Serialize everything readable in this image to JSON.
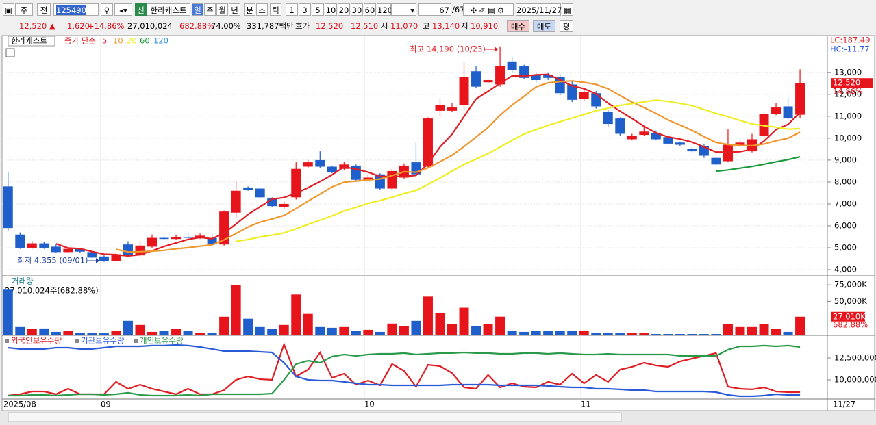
{
  "toolbar": {
    "period": "주",
    "mode": "전",
    "code": "125490",
    "badge": "신",
    "name": "한라캐스트",
    "units": [
      "일",
      "주",
      "월",
      "년",
      "분",
      "초",
      "틱"
    ],
    "intervals": [
      "1",
      "3",
      "5",
      "10",
      "20",
      "30",
      "60",
      "120"
    ],
    "count": "67",
    "total": "/67",
    "date": "2025/11/27"
  },
  "quote": {
    "price": "12,520 ▲",
    "change": "1,620",
    "rate": "+14.86%",
    "volume": "27,010,024",
    "volume_rate": "682.88%",
    "turnover": "74.00%",
    "amount": "331,787백만",
    "bid_label": "호가",
    "ask": "12,520",
    "bid": "12,510",
    "open_label": "시",
    "open": "11,070",
    "high_label": "고",
    "high": "13,140",
    "low_label": "저",
    "low": "10,910",
    "buy": "매수",
    "sell": "매도",
    "avg": "평"
  },
  "x_axis_labels": [
    "2025/08",
    "09",
    "10",
    "11"
  ],
  "last_date": "11/27",
  "chart_data": [
    {
      "type": "candlestick",
      "title": "한라캐스트",
      "ma_label": "종가 단순",
      "lc": "LC:187.49",
      "hc": "HC:-11.77",
      "high_note": "최고 14,190 (10/23)",
      "low_note": "최저 4,355 (09/01)",
      "up_color": "#e8141c",
      "down_color": "#1f5fcc",
      "grid": true,
      "open": [
        7800,
        5600,
        5000,
        5200,
        5050,
        4800,
        4950,
        4800,
        4600,
        4400,
        5150,
        4650,
        5050,
        5450,
        5400,
        5500,
        5450,
        5450,
        5150,
        6600,
        7750,
        7700,
        7250,
        6850,
        7300,
        8700,
        9000,
        8700,
        8600,
        8750,
        8100,
        8350,
        7700,
        8200,
        8900,
        8700,
        11250,
        11250,
        11500,
        13050,
        12550,
        12450,
        13500,
        13300,
        12900,
        12900,
        12800,
        12450,
        11800,
        12050,
        11200,
        10900,
        9950,
        10150,
        10250,
        10050,
        9800,
        9500,
        9650,
        9100,
        8950,
        9650,
        9400,
        10100,
        11100,
        11450,
        11070
      ],
      "high": [
        8440,
        5700,
        5300,
        5250,
        5150,
        5000,
        5000,
        4850,
        4650,
        4750,
        5300,
        5300,
        5600,
        5550,
        5600,
        5700,
        5650,
        5650,
        6700,
        8050,
        7800,
        7750,
        7300,
        7100,
        8900,
        9000,
        9400,
        8750,
        8900,
        8800,
        8350,
        8400,
        8600,
        8850,
        9800,
        10950,
        11800,
        11600,
        13500,
        13300,
        12700,
        14190,
        13700,
        13350,
        13000,
        13000,
        12900,
        12600,
        12200,
        12150,
        11300,
        10950,
        10200,
        10500,
        10350,
        10100,
        9850,
        9600,
        9750,
        9150,
        10400,
        9950,
        10200,
        11200,
        11600,
        11850,
        13140
      ],
      "low": [
        5780,
        4950,
        4950,
        4950,
        4750,
        4750,
        4750,
        4500,
        4355,
        4355,
        4600,
        4600,
        5000,
        5350,
        5350,
        5400,
        5400,
        5100,
        5100,
        6350,
        7600,
        7250,
        6850,
        6750,
        7200,
        8650,
        8650,
        8400,
        8550,
        8050,
        8050,
        7650,
        7650,
        8150,
        8300,
        8650,
        11000,
        11200,
        11300,
        12300,
        12500,
        12350,
        13000,
        12700,
        12550,
        12650,
        11950,
        11650,
        11700,
        11350,
        10500,
        10100,
        9900,
        10100,
        9900,
        9700,
        9650,
        9350,
        9100,
        8750,
        8900,
        9600,
        9350,
        10050,
        11050,
        10850,
        10910
      ],
      "close": [
        5900,
        5000,
        5200,
        5000,
        4800,
        4950,
        4820,
        4550,
        4400,
        4700,
        4650,
        5100,
        5450,
        5400,
        5500,
        5450,
        5550,
        5150,
        6650,
        7600,
        7650,
        7300,
        6900,
        7000,
        8600,
        8900,
        8700,
        8450,
        8800,
        8100,
        8200,
        7700,
        8500,
        8750,
        8350,
        10900,
        11500,
        11400,
        12800,
        12350,
        12650,
        13300,
        13100,
        12750,
        12650,
        12750,
        12050,
        11750,
        12100,
        11450,
        10650,
        10200,
        10100,
        10300,
        9950,
        9750,
        9700,
        9400,
        9200,
        8800,
        9700,
        9800,
        9950,
        11100,
        11400,
        10900,
        12520
      ],
      "moving_averages": [
        {
          "name": "5",
          "color": "#e01e24"
        },
        {
          "name": "10",
          "color": "#f0962e"
        },
        {
          "name": "20",
          "color": "#eeee22"
        },
        {
          "name": "60",
          "color": "#1a9a3a"
        },
        {
          "name": "120",
          "color": "#3090e0"
        }
      ],
      "price_tag": {
        "value": 12520,
        "label": "12,520"
      },
      "rate_tag": "14.86%",
      "ylim": [
        3750,
        14650
      ],
      "yticks": [
        {
          "value": 4000,
          "label": "4,000"
        },
        {
          "value": 5000,
          "label": "5,000"
        },
        {
          "value": 6000,
          "label": "6,000"
        },
        {
          "value": 7000,
          "label": "7,000"
        },
        {
          "value": 8000,
          "label": "8,000"
        },
        {
          "value": 9000,
          "label": "9,000"
        },
        {
          "value": 10000,
          "label": "10,000"
        },
        {
          "value": 11000,
          "label": "11,000"
        },
        {
          "value": 12000,
          "label": "12,000"
        },
        {
          "value": 13000,
          "label": "13,000"
        }
      ]
    },
    {
      "type": "bar",
      "title": "거래량",
      "subtitle": "27,010,024주(682.88%)",
      "values": [
        67700,
        11500,
        8300,
        9400,
        4200,
        5200,
        2100,
        2100,
        2000,
        6200,
        20800,
        14600,
        4200,
        6200,
        8300,
        5200,
        2100,
        2100,
        27000,
        75000,
        24000,
        11500,
        8300,
        14600,
        60400,
        31200,
        11500,
        10400,
        11500,
        6200,
        7300,
        4200,
        16700,
        12500,
        20800,
        57300,
        32300,
        15600,
        40600,
        12500,
        15600,
        27100,
        6200,
        4200,
        6200,
        5200,
        5200,
        5200,
        6200,
        2100,
        2100,
        2100,
        2100,
        2100,
        1000,
        1000,
        1000,
        1000,
        1000,
        1000,
        15600,
        11500,
        11500,
        15600,
        8300,
        4200,
        27010
      ],
      "tag": {
        "value": 27010,
        "label": "27,010K"
      },
      "rate_tag": "682.88%",
      "ylim": [
        0,
        87500
      ],
      "yticks": [
        {
          "value": 50000,
          "label": "50,000K"
        },
        {
          "value": 75000,
          "label": "75,000K"
        }
      ]
    },
    {
      "type": "line",
      "series": [
        {
          "name": "외국인보유수량",
          "color": "#e01e24",
          "values": [
            8200000,
            8360000,
            8670000,
            8670000,
            8360000,
            8980000,
            8360000,
            8360000,
            8360000,
            9770000,
            8980000,
            9450000,
            8980000,
            8670000,
            8360000,
            8980000,
            8360000,
            8360000,
            8830000,
            10000000,
            10390000,
            10080000,
            10000000,
            14060000,
            10390000,
            11170000,
            13125000,
            10230000,
            10700000,
            9450000,
            9920000,
            9375000,
            11800000,
            11020000,
            9220000,
            11720000,
            11560000,
            10780000,
            9140000,
            8980000,
            10550000,
            9140000,
            9610000,
            9220000,
            9140000,
            9770000,
            9450000,
            10700000,
            9610000,
            10550000,
            9770000,
            11170000,
            11480000,
            11950000,
            11640000,
            11480000,
            12110000,
            12420000,
            12730000,
            13050000,
            9220000,
            8980000,
            8910000,
            9140000,
            8670000,
            8590000,
            8590000
          ]
        },
        {
          "name": "기관보유수량",
          "color": "#2a5ad8",
          "values": [
            13670000,
            13520000,
            13520000,
            13520000,
            13670000,
            13670000,
            13520000,
            13520000,
            13670000,
            13830000,
            13830000,
            13830000,
            13910000,
            13910000,
            13980000,
            13910000,
            13750000,
            13520000,
            13280000,
            13280000,
            13280000,
            13200000,
            13125000,
            11950000,
            10390000,
            10000000,
            9920000,
            9920000,
            9770000,
            9610000,
            9450000,
            9450000,
            9375000,
            9375000,
            9375000,
            9375000,
            9375000,
            9450000,
            9450000,
            9450000,
            9450000,
            9375000,
            9375000,
            9375000,
            9375000,
            9300000,
            9220000,
            9140000,
            9140000,
            8980000,
            8980000,
            8910000,
            8830000,
            8830000,
            8670000,
            8670000,
            8670000,
            8670000,
            8670000,
            8590000,
            8280000,
            8125000,
            8125000,
            8200000,
            8360000,
            8280000,
            8280000
          ]
        },
        {
          "name": "개인보유수량",
          "color": "#2a9a4a",
          "values": [
            8200000,
            8200000,
            8280000,
            8280000,
            8200000,
            8280000,
            8360000,
            8360000,
            8280000,
            8360000,
            8520000,
            8280000,
            8200000,
            8200000,
            8200000,
            8280000,
            8200000,
            8360000,
            8360000,
            8360000,
            8360000,
            8360000,
            8440000,
            10000000,
            11800000,
            12190000,
            11950000,
            12660000,
            12890000,
            12730000,
            12890000,
            12970000,
            12970000,
            13050000,
            12890000,
            12970000,
            13050000,
            13050000,
            13125000,
            13050000,
            13050000,
            12970000,
            12970000,
            13050000,
            13050000,
            12970000,
            13050000,
            12970000,
            12890000,
            12890000,
            12970000,
            12890000,
            12890000,
            12890000,
            12890000,
            12890000,
            12730000,
            12730000,
            12730000,
            12730000,
            13440000,
            13830000,
            13830000,
            13910000,
            13830000,
            13910000,
            13750000
          ]
        }
      ],
      "ylim": [
        7890000,
        14920000
      ],
      "yticks": [
        {
          "value": 10000000,
          "label": "10,000,000"
        },
        {
          "value": 12500000,
          "label": "12,500,000"
        }
      ]
    }
  ]
}
